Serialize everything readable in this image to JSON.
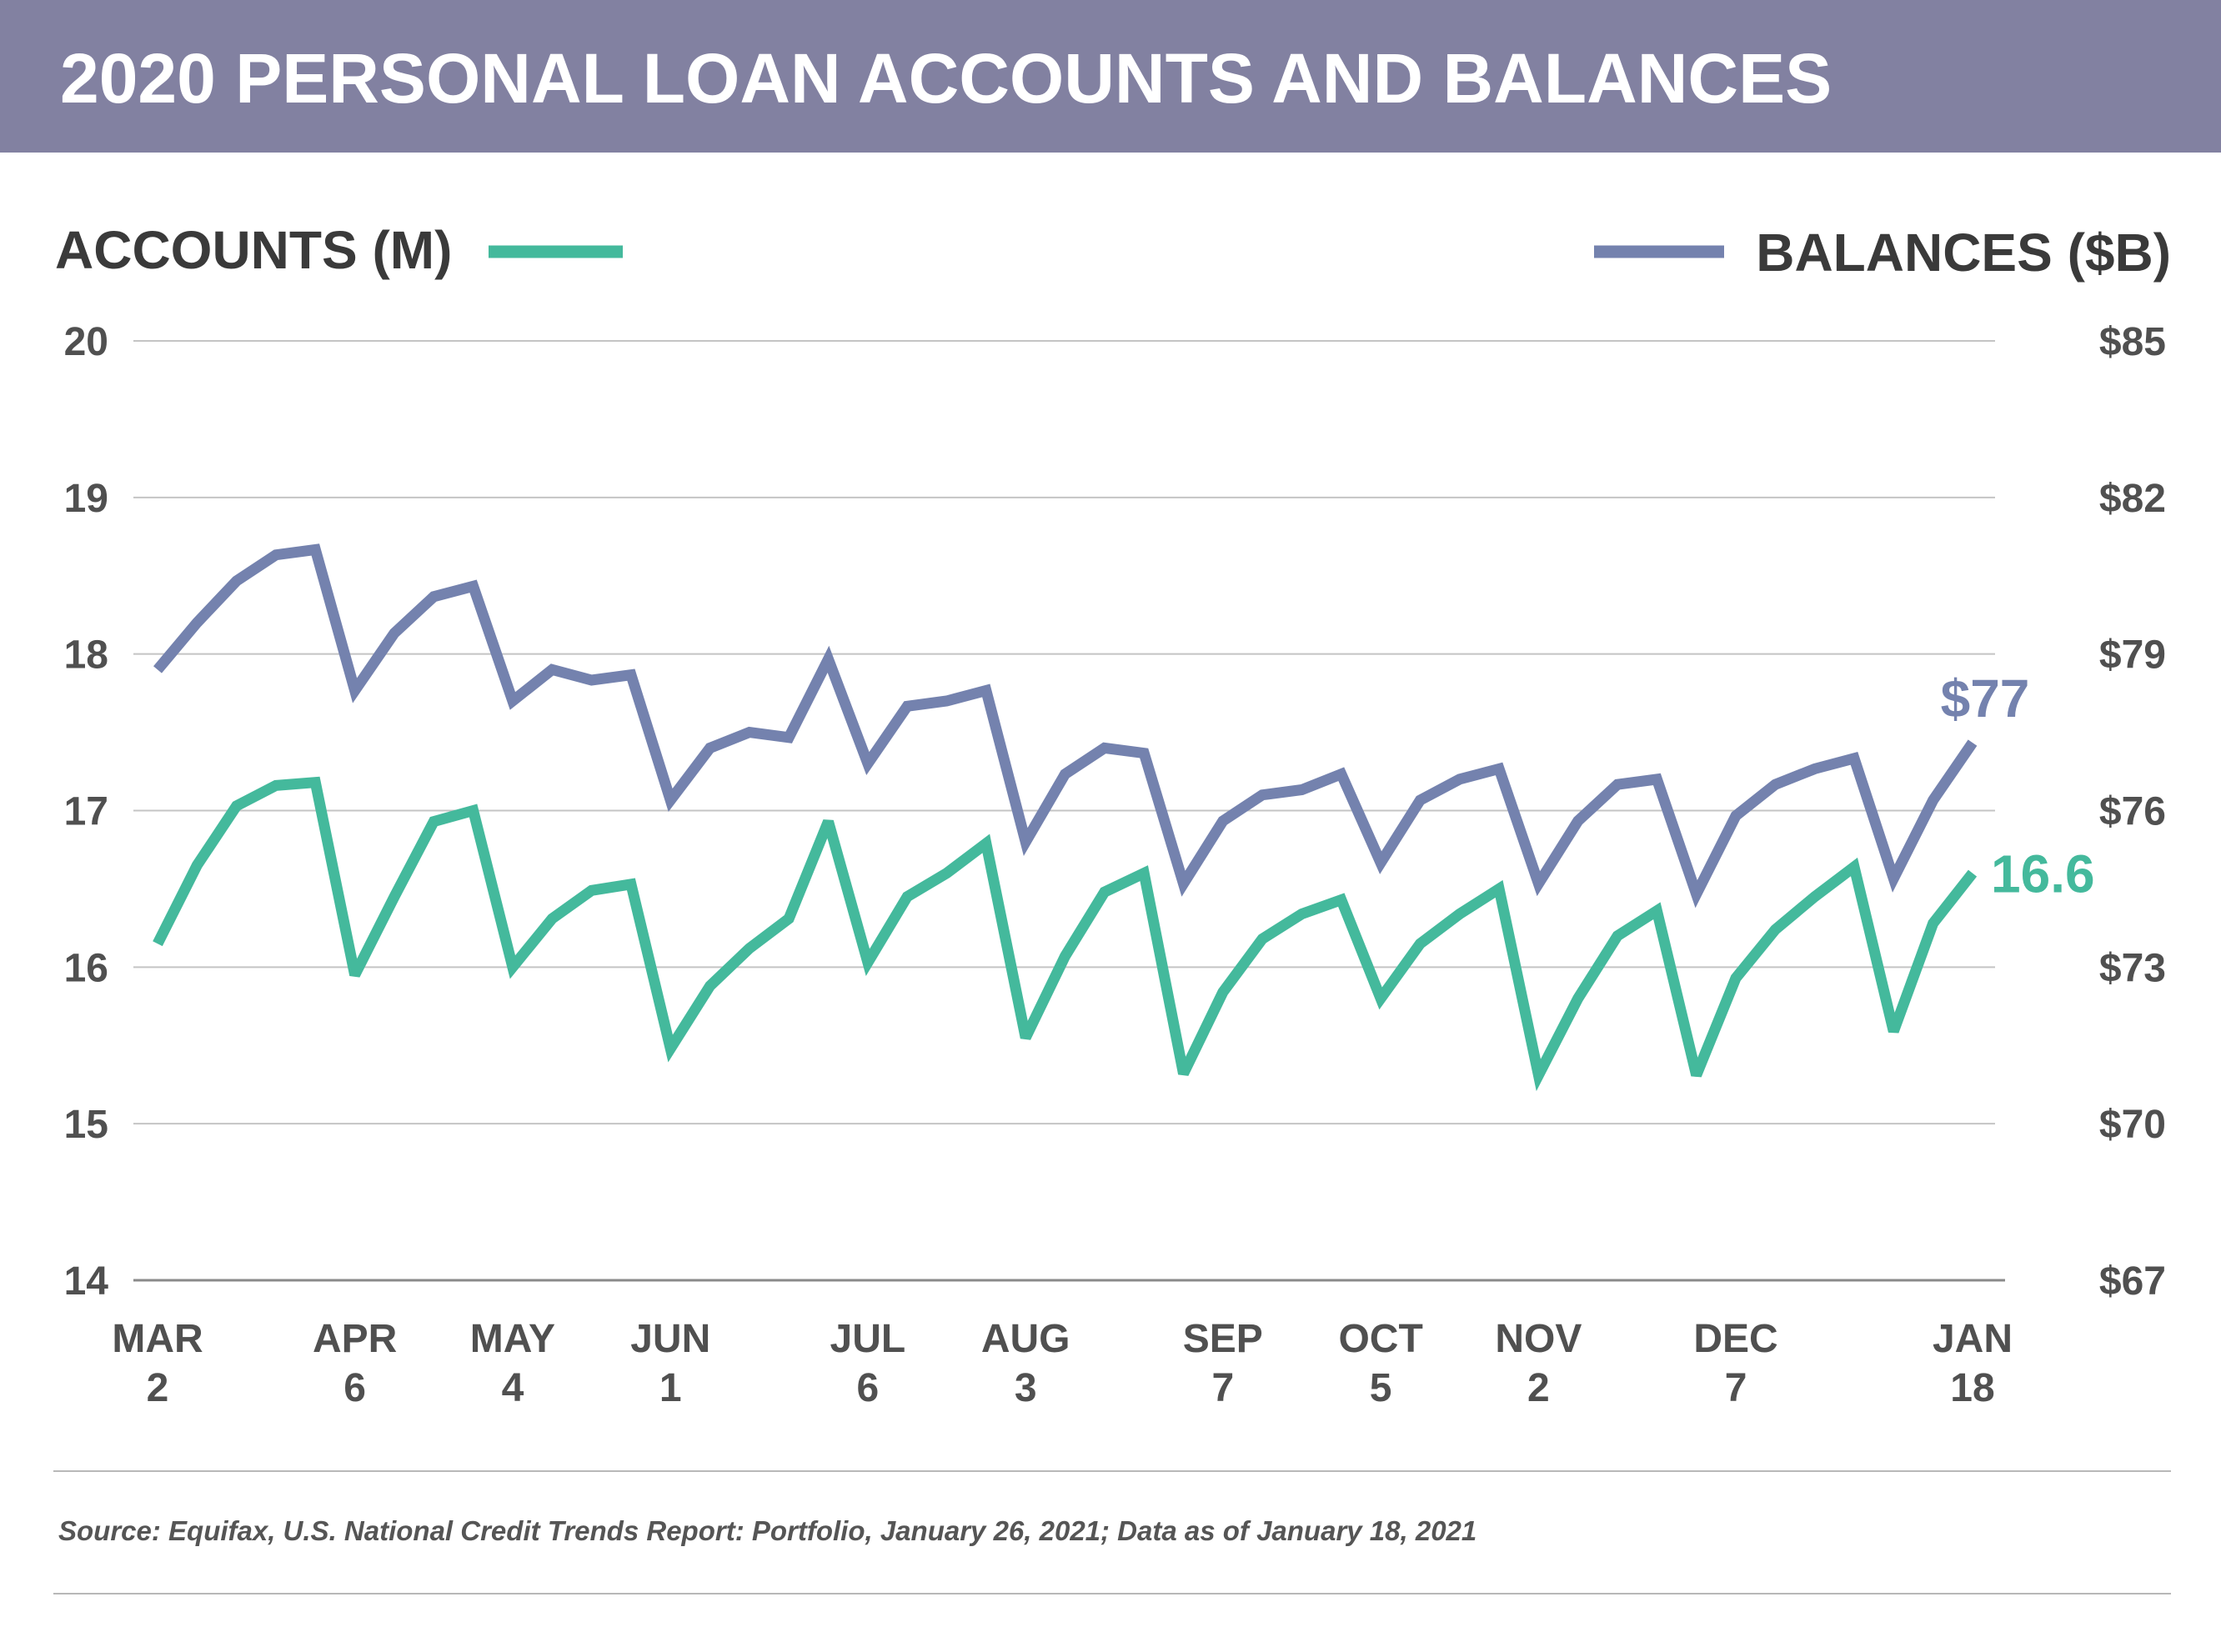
{
  "header": {
    "title": "2020 PERSONAL LOAN ACCOUNTS AND BALANCES"
  },
  "colors": {
    "header_bg": "#8281a1",
    "accounts": "#44b99c",
    "balances": "#7482ae",
    "text": "#3a3a3a",
    "grid": "#c4c4c4"
  },
  "chart_data": {
    "type": "line",
    "title": "2020 PERSONAL LOAN ACCOUNTS AND BALANCES",
    "legend": [
      {
        "label": "ACCOUNTS (M)",
        "series": "accounts",
        "placement": "top-left"
      },
      {
        "label": "BALANCES ($B)",
        "series": "balances",
        "placement": "top-right"
      }
    ],
    "x_ticks": [
      {
        "i": 0,
        "month": "MAR",
        "day": "2"
      },
      {
        "i": 5,
        "month": "APR",
        "day": "6"
      },
      {
        "i": 9,
        "month": "MAY",
        "day": "4"
      },
      {
        "i": 13,
        "month": "JUN",
        "day": "1"
      },
      {
        "i": 18,
        "month": "JUL",
        "day": "6"
      },
      {
        "i": 22,
        "month": "AUG",
        "day": "3"
      },
      {
        "i": 27,
        "month": "SEP",
        "day": "7"
      },
      {
        "i": 31,
        "month": "OCT",
        "day": "5"
      },
      {
        "i": 35,
        "month": "NOV",
        "day": "2"
      },
      {
        "i": 40,
        "month": "DEC",
        "day": "7"
      },
      {
        "i": 46,
        "month": "JAN",
        "day": "18"
      }
    ],
    "y_left": {
      "label": "ACCOUNTS (M)",
      "ticks": [
        "14",
        "15",
        "16",
        "17",
        "18",
        "19",
        "20"
      ],
      "ylim": [
        14,
        20
      ]
    },
    "y_right": {
      "label": "BALANCES ($B)",
      "ticks": [
        "$67",
        "$70",
        "$73",
        "$76",
        "$79",
        "$82",
        "$85"
      ],
      "ylim": [
        67,
        85
      ]
    },
    "grid": true,
    "series": [
      {
        "name": "ACCOUNTS (M)",
        "key": "accounts",
        "axis": "left",
        "values": [
          16.15,
          16.65,
          17.03,
          17.16,
          17.18,
          15.95,
          16.45,
          16.93,
          17.0,
          16.0,
          16.31,
          16.49,
          16.53,
          15.48,
          15.88,
          16.12,
          16.31,
          16.93,
          16.03,
          16.45,
          16.6,
          16.79,
          15.55,
          16.07,
          16.48,
          16.6,
          15.32,
          15.84,
          16.18,
          16.34,
          16.43,
          15.8,
          16.15,
          16.34,
          16.5,
          15.31,
          15.8,
          16.2,
          16.36,
          15.31,
          15.93,
          16.24,
          16.45,
          16.64,
          15.59,
          16.28,
          16.6
        ],
        "end_label": "16.6"
      },
      {
        "name": "BALANCES ($B)",
        "key": "balances",
        "axis": "right",
        "values": [
          78.7,
          79.6,
          80.4,
          80.9,
          81.0,
          78.3,
          79.4,
          80.1,
          80.3,
          78.1,
          78.7,
          78.5,
          78.6,
          76.2,
          77.2,
          77.5,
          77.4,
          78.9,
          76.9,
          78.0,
          78.1,
          78.3,
          75.4,
          76.7,
          77.2,
          77.1,
          74.6,
          75.8,
          76.3,
          76.4,
          76.7,
          75.0,
          76.2,
          76.6,
          76.8,
          74.6,
          75.8,
          76.5,
          76.6,
          74.4,
          75.9,
          76.5,
          76.8,
          77.0,
          74.7,
          76.2,
          77.3
        ],
        "end_label": "$77"
      }
    ]
  },
  "footer": {
    "source": "Source: Equifax, U.S. National Credit Trends Report: Portfolio, January 26, 2021; Data as of January 18, 2021"
  }
}
